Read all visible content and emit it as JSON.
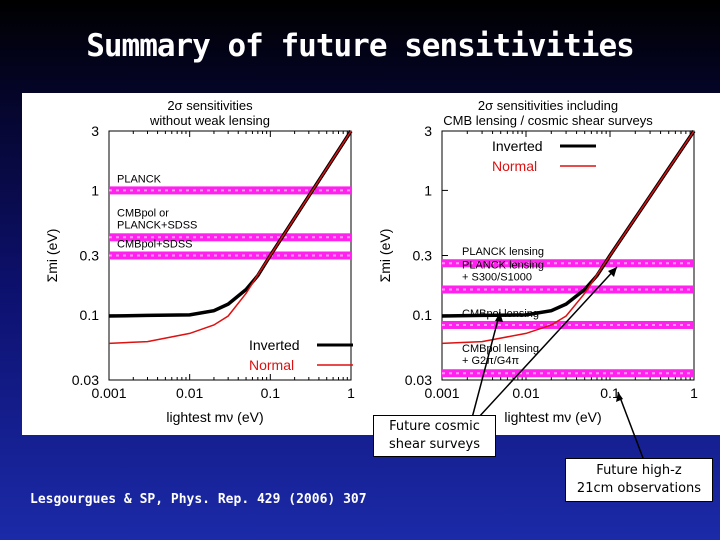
{
  "slide": {
    "title": "Summary of future sensitivities",
    "citation": "Lesgourgues & SP, Phys. Rep. 429 (2006) 307",
    "callout_cosmic": [
      "Future cosmic",
      "shear surveys"
    ],
    "callout_21cm": [
      "Future high-z",
      "21cm observations"
    ]
  },
  "colors": {
    "inverted": "#000000",
    "normal": "#dd1111",
    "band": "#ff22ee",
    "band_light": "#ff99f0"
  },
  "chart_data": [
    {
      "type": "line",
      "title": "2σ  sensitivities",
      "subtitle": "without weak lensing",
      "xlabel": "lightest mν (eV)",
      "ylabel": "Σmi (eV)",
      "xscale": "log",
      "yscale": "log",
      "xlim": [
        0.001,
        1
      ],
      "ylim": [
        0.03,
        3
      ],
      "xticks": [
        "0.001",
        "0.01",
        "0.1",
        "1"
      ],
      "yticks": [
        "0.03",
        "0.1",
        "0.3",
        "1",
        "3"
      ],
      "legend": {
        "position": "bottom-right",
        "entries": [
          "Inverted",
          "Normal"
        ]
      },
      "series": [
        {
          "name": "Inverted",
          "color": "#000000",
          "x": [
            0.001,
            0.003,
            0.01,
            0.02,
            0.03,
            0.05,
            0.07,
            0.1,
            0.2,
            0.3,
            0.5,
            1
          ],
          "y": [
            0.098,
            0.099,
            0.1,
            0.108,
            0.122,
            0.16,
            0.207,
            0.3,
            0.6,
            0.9,
            1.5,
            3.0
          ]
        },
        {
          "name": "Normal",
          "color": "#dd1111",
          "x": [
            0.001,
            0.003,
            0.01,
            0.02,
            0.03,
            0.05,
            0.07,
            0.1,
            0.2,
            0.3,
            0.5,
            1
          ],
          "y": [
            0.059,
            0.061,
            0.071,
            0.083,
            0.098,
            0.149,
            0.21,
            0.3,
            0.6,
            0.9,
            1.5,
            3.0
          ]
        }
      ],
      "bands": [
        {
          "label": "PLANCK",
          "value": 1.0
        },
        {
          "label": "CMBpol or PLANCK+SDSS",
          "value": 0.42
        },
        {
          "label": "CMBpol+SDSS",
          "value": 0.3
        }
      ]
    },
    {
      "type": "line",
      "title": "2σ  sensitivities including",
      "subtitle": "CMB lensing / cosmic shear surveys",
      "xlabel": "lightest mν (eV)",
      "ylabel": "Σmi (eV)",
      "xscale": "log",
      "yscale": "log",
      "xlim": [
        0.001,
        1
      ],
      "ylim": [
        0.03,
        3
      ],
      "xticks": [
        "0.001",
        "0.01",
        "0.1",
        "1"
      ],
      "yticks": [
        "0.03",
        "0.1",
        "0.3",
        "1",
        "3"
      ],
      "legend": {
        "position": "top-left",
        "entries": [
          "Inverted",
          "Normal"
        ]
      },
      "series": [
        {
          "name": "Inverted",
          "color": "#000000",
          "x": [
            0.001,
            0.003,
            0.01,
            0.02,
            0.03,
            0.05,
            0.07,
            0.1,
            0.2,
            0.3,
            0.5,
            1
          ],
          "y": [
            0.098,
            0.099,
            0.1,
            0.108,
            0.122,
            0.16,
            0.207,
            0.3,
            0.6,
            0.9,
            1.5,
            3.0
          ]
        },
        {
          "name": "Normal",
          "color": "#dd1111",
          "x": [
            0.001,
            0.003,
            0.01,
            0.02,
            0.03,
            0.05,
            0.07,
            0.1,
            0.2,
            0.3,
            0.5,
            1
          ],
          "y": [
            0.059,
            0.061,
            0.071,
            0.083,
            0.098,
            0.149,
            0.21,
            0.3,
            0.6,
            0.9,
            1.5,
            3.0
          ]
        }
      ],
      "bands": [
        {
          "label": "PLANCK lensing",
          "value": 0.26
        },
        {
          "label": "PLANCK lensing + S300/S1000",
          "value": 0.16
        },
        {
          "label": "CMBpol lensing",
          "value": 0.083
        },
        {
          "label": "CMBpol lensing + G2π/G4π",
          "value": 0.034
        }
      ]
    }
  ]
}
